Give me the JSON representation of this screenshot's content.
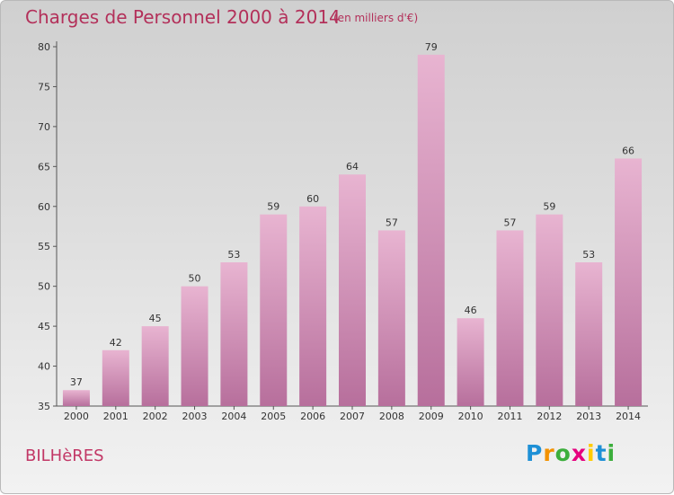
{
  "header": {
    "title": "Charges de Personnel 2000 à 2014",
    "subtitle": "(en milliers d'€)"
  },
  "footer": {
    "commune": "BILHèRES",
    "logo": [
      "P",
      "r",
      "o",
      "x",
      "i",
      "t",
      "i"
    ]
  },
  "colors": {
    "accent": "#b3305a",
    "bar_light": "#e8b4d1",
    "bar_dark": "#b76f9c",
    "logo": [
      "#1e90d6",
      "#f39200",
      "#3cae3c",
      "#e6007e",
      "#ffcc00",
      "#1e90d6",
      "#3cae3c"
    ]
  },
  "chart_data": {
    "type": "bar",
    "categories": [
      "2000",
      "2001",
      "2002",
      "2003",
      "2004",
      "2005",
      "2006",
      "2007",
      "2008",
      "2009",
      "2010",
      "2011",
      "2012",
      "2013",
      "2014"
    ],
    "values": [
      37,
      42,
      45,
      50,
      53,
      59,
      60,
      64,
      57,
      79,
      46,
      57,
      59,
      53,
      66
    ],
    "ylim": [
      35,
      80
    ],
    "yticks": [
      35,
      40,
      45,
      50,
      55,
      60,
      65,
      70,
      75,
      80
    ],
    "grid": false,
    "data_labels": true
  }
}
